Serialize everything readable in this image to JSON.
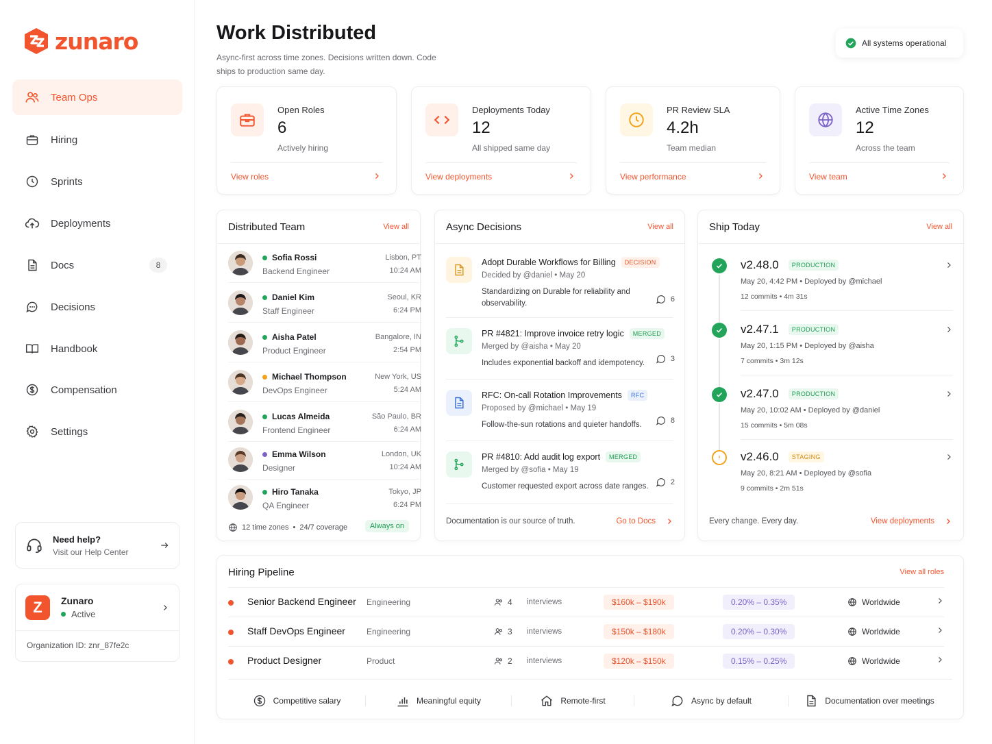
{
  "brand": {
    "name": "zunaro",
    "accent": "#f2542d"
  },
  "sidebar": {
    "items": [
      {
        "label": "Team Ops",
        "icon": "users-icon",
        "active": true
      },
      {
        "label": "Hiring",
        "icon": "briefcase-icon"
      },
      {
        "label": "Sprints",
        "icon": "clock-icon"
      },
      {
        "label": "Deployments",
        "icon": "cloud-upload-icon"
      },
      {
        "label": "Docs",
        "icon": "document-icon",
        "badge": "8"
      },
      {
        "label": "Decisions",
        "icon": "chat-icon"
      },
      {
        "label": "Handbook",
        "icon": "book-icon"
      },
      {
        "label": "Compensation",
        "icon": "dollar-icon"
      },
      {
        "label": "Settings",
        "icon": "gear-icon"
      }
    ],
    "help": {
      "title": "Need help?",
      "subtitle": "Visit our Help Center"
    },
    "org": {
      "initial": "Z",
      "name": "Zunaro",
      "status": "Active",
      "id_text": "Organization ID: znr_87fe2c"
    }
  },
  "header": {
    "title": "Work Distributed",
    "subtitle": "Async-first across time zones. Decisions written down. Code ships to production same day.",
    "status": "All systems operational"
  },
  "stats": [
    {
      "label": "Open Roles",
      "value": "6",
      "sub": "Actively hiring",
      "link": "View roles",
      "icon": "briefcase-icon",
      "color": "#f2542d"
    },
    {
      "label": "Deployments Today",
      "value": "12",
      "sub": "All shipped same day",
      "link": "View deployments",
      "icon": "code-icon",
      "color": "#f2542d"
    },
    {
      "label": "PR Review SLA",
      "value": "4.2h",
      "sub": "Team median",
      "link": "View performance",
      "icon": "clock-icon",
      "color": "#f0a31a"
    },
    {
      "label": "Active Time Zones",
      "value": "12",
      "sub": "Across the team",
      "link": "View team",
      "icon": "globe-icon",
      "color": "#7a62c8"
    }
  ],
  "team": {
    "title": "Distributed Team",
    "view_all": "View all",
    "members": [
      {
        "name": "Sofia Rossi",
        "role": "Backend Engineer",
        "location": "Lisbon, PT",
        "time": "10:24 AM",
        "status_color": "#22a55a"
      },
      {
        "name": "Daniel Kim",
        "role": "Staff Engineer",
        "location": "Seoul, KR",
        "time": "6:24 PM",
        "status_color": "#22a55a"
      },
      {
        "name": "Aisha Patel",
        "role": "Product Engineer",
        "location": "Bangalore, IN",
        "time": "2:54 PM",
        "status_color": "#22a55a"
      },
      {
        "name": "Michael Thompson",
        "role": "DevOps Engineer",
        "location": "New York, US",
        "time": "5:24 AM",
        "status_color": "#f0a31a"
      },
      {
        "name": "Lucas Almeida",
        "role": "Frontend Engineer",
        "location": "São Paulo, BR",
        "time": "6:24 AM",
        "status_color": "#22a55a"
      },
      {
        "name": "Emma Wilson",
        "role": "Designer",
        "location": "London, UK",
        "time": "10:24 AM",
        "status_color": "#7a62c8"
      },
      {
        "name": "Hiro Tanaka",
        "role": "QA Engineer",
        "location": "Tokyo, JP",
        "time": "6:24 PM",
        "status_color": "#22a55a"
      }
    ],
    "footer": {
      "zones": "12 time zones",
      "coverage": "24/7 coverage",
      "badge": "Always on"
    }
  },
  "decisions": {
    "title": "Async Decisions",
    "view_all": "View all",
    "items": [
      {
        "title": "Adopt Durable Workflows for Billing",
        "tag": "DECISION",
        "meta": "Decided by @daniel  •  May 20",
        "desc": "Standardizing on Durable for reliability and observability.",
        "count": "6",
        "icon": "document-icon"
      },
      {
        "title": "PR #4821: Improve invoice retry logic",
        "tag": "MERGED",
        "meta": "Merged by @aisha  •  May 20",
        "desc": "Includes exponential backoff and idempotency.",
        "count": "3",
        "icon": "git-merge-icon"
      },
      {
        "title": "RFC: On-call Rotation Improvements",
        "tag": "RFC",
        "meta": "Proposed by @michael  •  May 19",
        "desc": "Follow-the-sun rotations and quieter handoffs.",
        "count": "8",
        "icon": "document-icon"
      },
      {
        "title": "PR #4810: Add audit log export",
        "tag": "MERGED",
        "meta": "Merged by @sofia  •  May 19",
        "desc": "Customer requested export across date ranges.",
        "count": "2",
        "icon": "git-merge-icon"
      }
    ],
    "footer": {
      "text": "Documentation is our source of truth.",
      "link": "Go to Docs"
    }
  },
  "ship": {
    "title": "Ship Today",
    "view_all": "View all",
    "releases": [
      {
        "version": "v2.48.0",
        "env": "PRODUCTION",
        "meta": "May 20, 4:42 PM  •  Deployed by @michael",
        "stats": "12 commits  •  4m 31s",
        "state": "success"
      },
      {
        "version": "v2.47.1",
        "env": "PRODUCTION",
        "meta": "May 20, 1:15 PM  •  Deployed by @aisha",
        "stats": "7 commits  •  3m 12s",
        "state": "success"
      },
      {
        "version": "v2.47.0",
        "env": "PRODUCTION",
        "meta": "May 20, 10:02 AM  •  Deployed by @daniel",
        "stats": "15 commits  •  5m 08s",
        "state": "success"
      },
      {
        "version": "v2.46.0",
        "env": "STAGING",
        "meta": "May 20, 8:21 AM  •  Deployed by @sofia",
        "stats": "9 commits  •  2m 51s",
        "state": "pending"
      }
    ],
    "footer": {
      "text": "Every change. Every day.",
      "link": "View deployments"
    }
  },
  "pipeline": {
    "title": "Hiring Pipeline",
    "view_all": "View all roles",
    "roles": [
      {
        "title": "Senior Backend Engineer",
        "dept": "Engineering",
        "count": "4",
        "count_label": "interviews",
        "salary": "$160k – $190k",
        "equity": "0.20% – 0.35%",
        "location": "Worldwide"
      },
      {
        "title": "Staff DevOps Engineer",
        "dept": "Engineering",
        "count": "3",
        "count_label": "interviews",
        "salary": "$150k – $180k",
        "equity": "0.20% – 0.30%",
        "location": "Worldwide"
      },
      {
        "title": "Product Designer",
        "dept": "Product",
        "count": "2",
        "count_label": "interviews",
        "salary": "$120k – $150k",
        "equity": "0.15% – 0.25%",
        "location": "Worldwide"
      }
    ],
    "perks": [
      {
        "label": "Competitive salary",
        "icon": "dollar-icon"
      },
      {
        "label": "Meaningful equity",
        "icon": "bar-chart-icon"
      },
      {
        "label": "Remote-first",
        "icon": "home-icon"
      },
      {
        "label": "Async by default",
        "icon": "chat-icon"
      },
      {
        "label": "Documentation over meetings",
        "icon": "document-icon"
      }
    ]
  }
}
